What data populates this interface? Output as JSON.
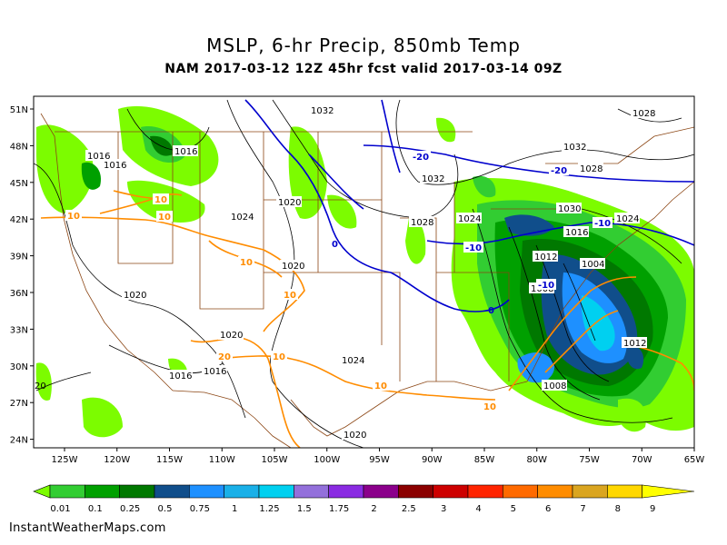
{
  "title": "MSLP, 6-hr Precip, 850mb Temp",
  "subtitle": "NAM 2017-03-12 12Z 45hr fcst valid 2017-03-14 09Z",
  "credit": "InstantWeatherMaps.com",
  "lat_labels": [
    "51N",
    "48N",
    "45N",
    "42N",
    "39N",
    "36N",
    "33N",
    "30N",
    "27N",
    "24N"
  ],
  "lon_labels": [
    "125W",
    "120W",
    "115W",
    "110W",
    "105W",
    "100W",
    "95W",
    "90W",
    "85W",
    "80W",
    "75W",
    "70W",
    "65W"
  ],
  "isobar_labels": [
    "1032",
    "1028",
    "1016",
    "1016",
    "1016",
    "1032",
    "1020",
    "1024",
    "1028",
    "1024",
    "1032",
    "1028",
    "1020",
    "1020",
    "1024",
    "1020",
    "1016",
    "1016",
    "1020",
    "1030",
    "1016",
    "1012",
    "1004",
    "1008",
    "1012",
    "1008",
    "1024",
    "20"
  ],
  "temp_labels": [
    "-20",
    "-20",
    "-10",
    "-10",
    "10",
    "10",
    "10",
    "10",
    "10",
    "20",
    "10",
    "10",
    "10",
    "0",
    "0",
    "-10"
  ],
  "legend": {
    "labels": [
      "0.01",
      "0.1",
      "0.25",
      "0.5",
      "0.75",
      "1",
      "1.25",
      "1.5",
      "1.75",
      "2",
      "2.5",
      "3",
      "4",
      "5",
      "6",
      "7",
      "8",
      "9"
    ],
    "colors": [
      "#7cfc00",
      "#32cd32",
      "#00a000",
      "#007800",
      "#104e8b",
      "#1e90ff",
      "#1ab0e8",
      "#00d0f0",
      "#9370db",
      "#8a2be2",
      "#8b008b",
      "#8b0000",
      "#cd0000",
      "#ff2400",
      "#ff6a00",
      "#ff8c00",
      "#daa520",
      "#ffd700",
      "#ffff00"
    ]
  }
}
